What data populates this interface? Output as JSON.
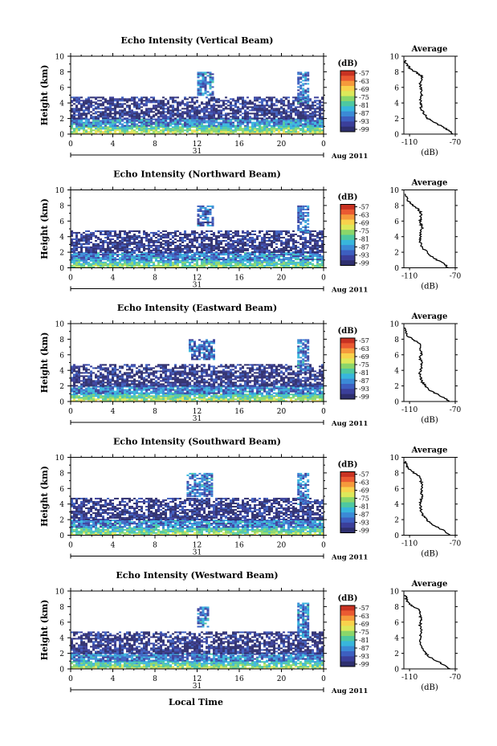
{
  "figure": {
    "date_label": "Aug 2011",
    "day_label": "31",
    "xlabel": "Local Time",
    "colorbar_unit": "(dB)",
    "colorbar_ticks": [
      "-57",
      "-63",
      "-69",
      "-75",
      "-81",
      "-87",
      "-93",
      "-99"
    ],
    "colorbar_colors": [
      "#c83222",
      "#ea5a32",
      "#f59a3c",
      "#f8d24c",
      "#dde85a",
      "#8ad66a",
      "#4ec8a0",
      "#38b6dc",
      "#3b8ad6",
      "#3d5fc0",
      "#3b3f9a",
      "#2e2f6e"
    ],
    "avg_title": "Average",
    "avg_xlabel": "(dB)",
    "avg_xticks": [
      "-110",
      "-70"
    ],
    "ylabel": "Height (km)"
  },
  "chart_data": [
    {
      "type": "heatmap",
      "title": "Echo Intensity (Vertical Beam)",
      "ylabel": "Height (km)",
      "xlabel": "Local Time",
      "x_ticks": [
        "0",
        "4",
        "8",
        "12",
        "16",
        "20",
        "0"
      ],
      "y_ticks": [
        "0",
        "2",
        "4",
        "6",
        "8",
        "10"
      ],
      "xlim": [
        0,
        24
      ],
      "ylim": [
        0,
        10
      ],
      "colorbar": {
        "label": "(dB)",
        "ticks": [
          -57,
          -63,
          -69,
          -75,
          -81,
          -87,
          -93,
          -99
        ]
      },
      "regions": [
        {
          "x": [
            0,
            24
          ],
          "y": [
            0,
            1.0
          ],
          "level": -75
        },
        {
          "x": [
            0,
            24
          ],
          "y": [
            1.0,
            2.0
          ],
          "level": -87
        },
        {
          "x": [
            0,
            24
          ],
          "y": [
            2.0,
            4.8
          ],
          "level": -96
        },
        {
          "x": [
            12.0,
            13.5
          ],
          "y": [
            5.0,
            8.0
          ],
          "level": -88
        },
        {
          "x": [
            21.5,
            22.5
          ],
          "y": [
            4.0,
            8.0
          ],
          "level": -88
        }
      ],
      "average_profile": {
        "title": "Average",
        "xlabel": "(dB)",
        "xlim": [
          -115,
          -70
        ],
        "ylim": [
          0,
          10
        ],
        "x_ticks": [
          "-110",
          "-70"
        ],
        "height": [
          0,
          0.5,
          1,
          1.5,
          2,
          2.5,
          3,
          3.5,
          4,
          4.5,
          5,
          5.5,
          6,
          6.5,
          7,
          7.5,
          8,
          8.5,
          9,
          9.5
        ],
        "db": [
          -72,
          -76,
          -82,
          -88,
          -94,
          -97,
          -99,
          -100,
          -100,
          -101,
          -99,
          -100,
          -100,
          -101,
          -99,
          -100,
          -105,
          -110,
          -113,
          -114
        ]
      }
    },
    {
      "type": "heatmap",
      "title": "Echo Intensity (Northward Beam)",
      "ylabel": "Height (km)",
      "xlabel": "Local Time",
      "x_ticks": [
        "0",
        "4",
        "8",
        "12",
        "16",
        "20",
        "0"
      ],
      "y_ticks": [
        "0",
        "2",
        "4",
        "6",
        "8",
        "10"
      ],
      "xlim": [
        0,
        24
      ],
      "ylim": [
        0,
        10
      ],
      "colorbar": {
        "label": "(dB)",
        "ticks": [
          -57,
          -63,
          -69,
          -75,
          -81,
          -87,
          -93,
          -99
        ]
      },
      "regions": [
        {
          "x": [
            0,
            24
          ],
          "y": [
            0,
            1.0
          ],
          "level": -78
        },
        {
          "x": [
            0,
            24
          ],
          "y": [
            1.0,
            2.0
          ],
          "level": -88
        },
        {
          "x": [
            0,
            24
          ],
          "y": [
            2.0,
            4.8
          ],
          "level": -96
        },
        {
          "x": [
            12.0,
            13.5
          ],
          "y": [
            5.5,
            8.0
          ],
          "level": -90
        },
        {
          "x": [
            21.5,
            22.5
          ],
          "y": [
            4.5,
            8.0
          ],
          "level": -88
        }
      ],
      "average_profile": {
        "title": "Average",
        "xlabel": "(dB)",
        "xlim": [
          -115,
          -70
        ],
        "ylim": [
          0,
          10
        ],
        "x_ticks": [
          "-110",
          "-70"
        ],
        "height": [
          0,
          0.5,
          1,
          1.5,
          2,
          2.5,
          3,
          3.5,
          4,
          4.5,
          5,
          5.5,
          6,
          6.5,
          7,
          7.5,
          8,
          8.5,
          9,
          9.5
        ],
        "db": [
          -76,
          -80,
          -86,
          -91,
          -95,
          -98,
          -100,
          -101,
          -100,
          -101,
          -99,
          -100,
          -101,
          -100,
          -100,
          -102,
          -107,
          -111,
          -113,
          -114
        ]
      }
    },
    {
      "type": "heatmap",
      "title": "Echo Intensity (Eastward Beam)",
      "ylabel": "Height (km)",
      "xlabel": "Local Time",
      "x_ticks": [
        "0",
        "4",
        "8",
        "12",
        "16",
        "20",
        "0"
      ],
      "y_ticks": [
        "0",
        "2",
        "4",
        "6",
        "8",
        "10"
      ],
      "xlim": [
        0,
        24
      ],
      "ylim": [
        0,
        10
      ],
      "colorbar": {
        "label": "(dB)",
        "ticks": [
          -57,
          -63,
          -69,
          -75,
          -81,
          -87,
          -93,
          -99
        ]
      },
      "regions": [
        {
          "x": [
            0,
            24
          ],
          "y": [
            0,
            1.0
          ],
          "level": -76
        },
        {
          "x": [
            0,
            24
          ],
          "y": [
            1.0,
            2.0
          ],
          "level": -88
        },
        {
          "x": [
            0,
            24
          ],
          "y": [
            2.0,
            4.8
          ],
          "level": -96
        },
        {
          "x": [
            11.2,
            13.5
          ],
          "y": [
            5.5,
            8.0
          ],
          "level": -90
        },
        {
          "x": [
            21.5,
            22.5
          ],
          "y": [
            4.0,
            8.0
          ],
          "level": -88
        }
      ],
      "average_profile": {
        "title": "Average",
        "xlabel": "(dB)",
        "xlim": [
          -115,
          -70
        ],
        "ylim": [
          0,
          10
        ],
        "x_ticks": [
          "-110",
          "-70"
        ],
        "height": [
          0,
          0.5,
          1,
          1.5,
          2,
          2.5,
          3,
          3.5,
          4,
          4.5,
          5,
          5.5,
          6,
          6.5,
          7,
          7.5,
          8,
          8.5,
          9,
          9.5
        ],
        "db": [
          -74,
          -80,
          -87,
          -93,
          -96,
          -99,
          -100,
          -101,
          -100,
          -100,
          -99,
          -101,
          -100,
          -100,
          -101,
          -101,
          -108,
          -112,
          -113,
          -114
        ]
      }
    },
    {
      "type": "heatmap",
      "title": "Echo Intensity (Southward Beam)",
      "ylabel": "Height (km)",
      "xlabel": "Local Time",
      "x_ticks": [
        "0",
        "4",
        "8",
        "12",
        "16",
        "20",
        "0"
      ],
      "y_ticks": [
        "0",
        "2",
        "4",
        "6",
        "8",
        "10"
      ],
      "xlim": [
        0,
        24
      ],
      "ylim": [
        0,
        10
      ],
      "colorbar": {
        "label": "(dB)",
        "ticks": [
          -57,
          -63,
          -69,
          -75,
          -81,
          -87,
          -93,
          -99
        ]
      },
      "regions": [
        {
          "x": [
            0,
            24
          ],
          "y": [
            0,
            1.0
          ],
          "level": -77
        },
        {
          "x": [
            0,
            24
          ],
          "y": [
            1.0,
            2.0
          ],
          "level": -88
        },
        {
          "x": [
            0,
            24
          ],
          "y": [
            2.0,
            4.8
          ],
          "level": -96
        },
        {
          "x": [
            11.0,
            13.5
          ],
          "y": [
            5.0,
            8.0
          ],
          "level": -88
        },
        {
          "x": [
            21.5,
            22.5
          ],
          "y": [
            4.0,
            8.0
          ],
          "level": -88
        }
      ],
      "average_profile": {
        "title": "Average",
        "xlabel": "(dB)",
        "xlim": [
          -115,
          -70
        ],
        "ylim": [
          0,
          10
        ],
        "x_ticks": [
          "-110",
          "-70"
        ],
        "height": [
          0,
          0.5,
          1,
          1.5,
          2,
          2.5,
          3,
          3.5,
          4,
          4.5,
          5,
          5.5,
          6,
          6.5,
          7,
          7.5,
          8,
          8.5,
          9,
          9.5
        ],
        "db": [
          -75,
          -79,
          -85,
          -91,
          -95,
          -98,
          -100,
          -100,
          -101,
          -100,
          -99,
          -100,
          -99,
          -99,
          -100,
          -100,
          -106,
          -111,
          -113,
          -114
        ]
      }
    },
    {
      "type": "heatmap",
      "title": "Echo Intensity (Westward Beam)",
      "ylabel": "Height (km)",
      "xlabel": "Local Time",
      "x_ticks": [
        "0",
        "4",
        "8",
        "12",
        "16",
        "20",
        "0"
      ],
      "y_ticks": [
        "0",
        "2",
        "4",
        "6",
        "8",
        "10"
      ],
      "xlim": [
        0,
        24
      ],
      "ylim": [
        0,
        10
      ],
      "colorbar": {
        "label": "(dB)",
        "ticks": [
          -57,
          -63,
          -69,
          -75,
          -81,
          -87,
          -93,
          -99
        ]
      },
      "regions": [
        {
          "x": [
            0,
            24
          ],
          "y": [
            0,
            1.0
          ],
          "level": -77
        },
        {
          "x": [
            0,
            24
          ],
          "y": [
            1.0,
            2.0
          ],
          "level": -88
        },
        {
          "x": [
            0,
            24
          ],
          "y": [
            2.0,
            4.8
          ],
          "level": -96
        },
        {
          "x": [
            12.0,
            13.0
          ],
          "y": [
            5.5,
            8.0
          ],
          "level": -88
        },
        {
          "x": [
            21.5,
            22.5
          ],
          "y": [
            4.0,
            8.5
          ],
          "level": -88
        }
      ],
      "average_profile": {
        "title": "Average",
        "xlabel": "(dB)",
        "xlim": [
          -115,
          -70
        ],
        "ylim": [
          0,
          10
        ],
        "x_ticks": [
          "-110",
          "-70"
        ],
        "height": [
          0,
          0.5,
          1,
          1.5,
          2,
          2.5,
          3,
          3.5,
          4,
          4.5,
          5,
          5.5,
          6,
          6.5,
          7,
          7.5,
          8,
          8.5,
          9,
          9.5
        ],
        "db": [
          -75,
          -80,
          -86,
          -92,
          -96,
          -99,
          -100,
          -101,
          -100,
          -101,
          -99,
          -101,
          -100,
          -100,
          -101,
          -101,
          -107,
          -111,
          -113,
          -114
        ]
      }
    }
  ]
}
